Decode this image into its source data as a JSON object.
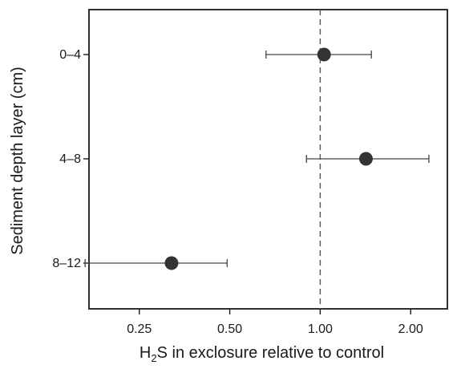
{
  "chart_data": {
    "type": "scatter",
    "title": "",
    "xlabel": {
      "prefix": "H",
      "subscript": "2",
      "suffix": "S in exclosure relative to control"
    },
    "ylabel": "Sediment depth layer (cm)",
    "x_scale": "log",
    "xlim": [
      0.17,
      2.65
    ],
    "x_ticks": [
      0.25,
      0.5,
      1.0,
      2.0
    ],
    "x_tick_labels": [
      "0.25",
      "0.50",
      "1.00",
      "2.00"
    ],
    "categories": [
      "0–4",
      "4–8",
      "8–12"
    ],
    "points": [
      {
        "category": "0–4",
        "value": 1.03,
        "lower": 0.66,
        "upper": 1.48
      },
      {
        "category": "4–8",
        "value": 1.42,
        "lower": 0.9,
        "upper": 2.3
      },
      {
        "category": "8–12",
        "value": 0.32,
        "lower": 0.165,
        "upper": 0.49
      }
    ],
    "reference_line": {
      "x": 1.0,
      "style": "dashed"
    },
    "grid": false,
    "legend": "none",
    "colors": {
      "point": "#333333",
      "axis": "#1a1a1a",
      "reference": "#555555"
    }
  }
}
